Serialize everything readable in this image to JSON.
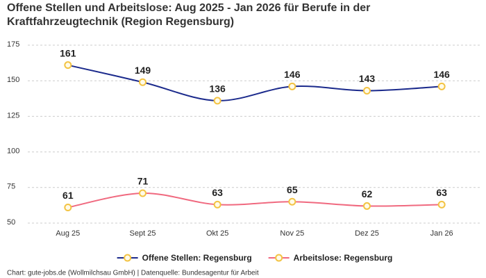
{
  "chart_data": {
    "type": "line",
    "title": "Offene Stellen und Arbeitslose: Aug 2025 - Jan 2026 für Berufe in der Kraftfahrzeugtechnik (Region Regensburg)",
    "categories": [
      "Aug 25",
      "Sept 25",
      "Okt 25",
      "Nov 25",
      "Dez 25",
      "Jan 26"
    ],
    "series": [
      {
        "name": "Offene Stellen: Regensburg",
        "color": "#1b2a8c",
        "values": [
          161,
          149,
          136,
          146,
          143,
          146
        ]
      },
      {
        "name": "Arbeitslose: Regensburg",
        "color": "#f0697f",
        "values": [
          61,
          71,
          63,
          65,
          62,
          63
        ]
      }
    ],
    "marker_color": "#f3c343",
    "ylim": [
      50,
      175
    ],
    "yticks": [
      50,
      75,
      100,
      125,
      150,
      175
    ],
    "grid": true,
    "legend": "bottom",
    "source": "Chart: gute-jobs.de (Wollmilchsau GmbH) | Datenquelle: Bundesagentur für Arbeit"
  }
}
